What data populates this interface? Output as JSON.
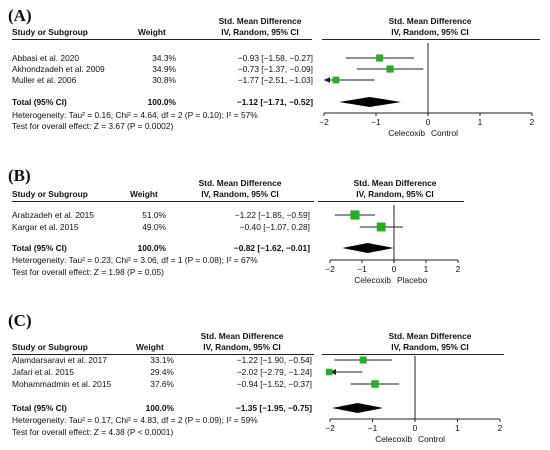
{
  "chart_data": [
    {
      "type": "forest",
      "panel_label": "(A)",
      "header": {
        "study_col": "Study or Subgroup",
        "weight_col": "Weight",
        "smd_title": "Std. Mean Difference",
        "smd_sub": "IV, Random, 95% CI",
        "plot_title": "Std. Mean Difference",
        "plot_sub": "IV, Random, 95% CI"
      },
      "studies": [
        {
          "name": "Abbasi et al. 2020",
          "weight": "34.3%",
          "ci_text": "−0.93 [−1.58, −0.27]",
          "smd": -0.93,
          "lo": -1.58,
          "hi": -0.27
        },
        {
          "name": "Akhondzadeh et al. 2009",
          "weight": "34.9%",
          "ci_text": "−0.73 [−1.37, −0.09]",
          "smd": -0.73,
          "lo": -1.37,
          "hi": -0.09
        },
        {
          "name": "Muller et al. 2006",
          "weight": "30.8%",
          "ci_text": "−1.77 [−2.51, −1.03]",
          "smd": -1.77,
          "lo": -2.51,
          "hi": -1.03
        }
      ],
      "total": {
        "label": "Total (95% CI)",
        "weight": "100.0%",
        "ci_text": "−1.12 [−1.71, −0.52]",
        "smd": -1.12,
        "lo": -1.71,
        "hi": -0.52
      },
      "heterogeneity": "Heterogeneity: Tau² = 0.16; Chi² = 4.64, df = 2 (P = 0.10); I² = 57%",
      "overall_effect": "Test for overall effect: Z = 3.67 (P = 0.0002)",
      "axis": {
        "ticks": [
          -2,
          -1,
          0,
          1,
          2
        ],
        "tick_labels": [
          "−2",
          "−1",
          "0",
          "1",
          "2"
        ],
        "xlim": [
          -2,
          2
        ]
      },
      "favours_left": "Celecoxib",
      "favours_right": "Control"
    },
    {
      "type": "forest",
      "panel_label": "(B)",
      "header": {
        "study_col": "Study or Subgroup",
        "weight_col": "Weight",
        "smd_title": "Std. Mean Difference",
        "smd_sub": "IV, Random, 95% CI",
        "plot_title": "Std. Mean Difference",
        "plot_sub": "IV, Random, 95% CI"
      },
      "studies": [
        {
          "name": "Arabzadeh et al. 2015",
          "weight": "51.0%",
          "ci_text": "−1.22 [−1.85, −0.59]",
          "smd": -1.22,
          "lo": -1.85,
          "hi": -0.59
        },
        {
          "name": "Kargar et al. 2015",
          "weight": "49.0%",
          "ci_text": "−0.40 [−1.07, 0.28]",
          "smd": -0.4,
          "lo": -1.07,
          "hi": 0.28
        }
      ],
      "total": {
        "label": "Total (95% CI)",
        "weight": "100.0%",
        "ci_text": "−0.82 [−1.62, −0.01]",
        "smd": -0.82,
        "lo": -1.62,
        "hi": -0.01
      },
      "heterogeneity": "Heterogeneity: Tau² = 0.23; Chi² = 3.06, df = 1 (P = 0.08); I² = 67%",
      "overall_effect": "Test for overall effect: Z = 1.98 (P = 0.05)",
      "axis": {
        "ticks": [
          -2,
          -1,
          0,
          1,
          2
        ],
        "tick_labels": [
          "−2",
          "−1",
          "0",
          "1",
          "2"
        ],
        "xlim": [
          -2,
          2
        ]
      },
      "favours_left": "Celecoxib",
      "favours_right": "Placebo"
    },
    {
      "type": "forest",
      "panel_label": "(C)",
      "header": {
        "study_col": "Study or Subgroup",
        "weight_col": "Weight",
        "smd_title": "Std. Mean Difference",
        "smd_sub": "IV, Random, 95% CI",
        "plot_title": "Std. Mean Difference",
        "plot_sub": "IV, Random, 95% CI"
      },
      "studies": [
        {
          "name": "Alamdarsaravi et al. 2017",
          "weight": "33.1%",
          "ci_text": "−1.22 [−1.90, −0.54]",
          "smd": -1.22,
          "lo": -1.9,
          "hi": -0.54
        },
        {
          "name": "Jafari et al. 2015",
          "weight": "29.4%",
          "ci_text": "−2.02 [−2.79, −1.24]",
          "smd": -2.02,
          "lo": -2.79,
          "hi": -1.24
        },
        {
          "name": "Mohammadmin et al. 2015",
          "weight": "37.6%",
          "ci_text": "−0.94 [−1.52, −0.37]",
          "smd": -0.94,
          "lo": -1.52,
          "hi": -0.37
        }
      ],
      "total": {
        "label": "Total (95% CI)",
        "weight": "100.0%",
        "ci_text": "−1.35 [−1.95, −0.75]",
        "smd": -1.35,
        "lo": -1.95,
        "hi": -0.75
      },
      "heterogeneity": "Heterogeneity: Tau² = 0.17; Chi² = 4.83, df = 2 (P = 0.09); I² = 59%",
      "overall_effect": "Test for overall effect: Z = 4.38 (P < 0.0001)",
      "axis": {
        "ticks": [
          -2,
          -1,
          0,
          1,
          2
        ],
        "tick_labels": [
          "−2",
          "−1",
          "0",
          "1",
          "2"
        ],
        "xlim": [
          -2,
          2
        ]
      },
      "favours_left": "Celecoxib",
      "favours_right": "Control"
    }
  ],
  "colors": {
    "marker": "#22b022",
    "diamond": "#000000",
    "line": "#222222"
  }
}
